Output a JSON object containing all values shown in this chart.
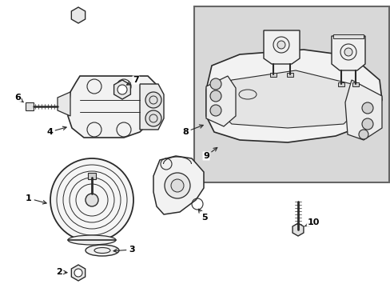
{
  "background_color": "#ffffff",
  "box_bg": "#e0e0e0",
  "line_color": "#2a2a2a",
  "label_color": "#000000",
  "fig_w": 4.89,
  "fig_h": 3.6,
  "dpi": 100
}
